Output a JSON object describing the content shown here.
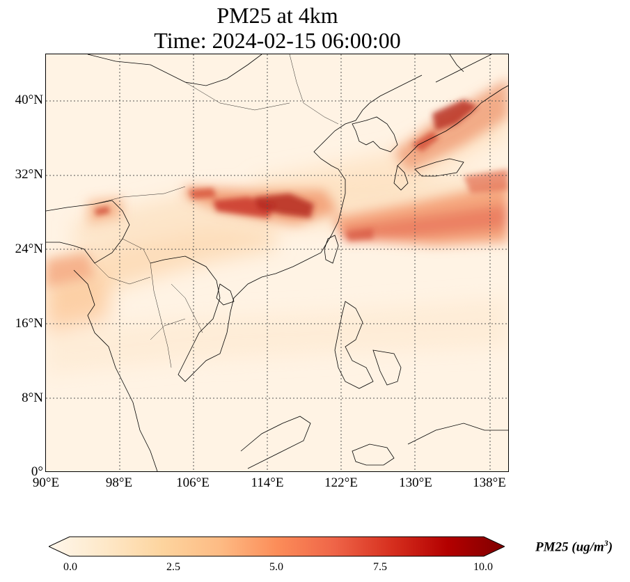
{
  "title": {
    "line1": "PM25 at 4km",
    "line2": "Time: 2024-02-15 06:00:00"
  },
  "map": {
    "projection": "PlateCarree",
    "lon_range": [
      90,
      139
    ],
    "lat_range": [
      0,
      45
    ],
    "coastlines": true,
    "borders": true,
    "gridlines": "dotted",
    "lat_ticks": [
      "40°N",
      "32°N",
      "24°N",
      "16°N",
      "8°N",
      "0°"
    ],
    "lon_ticks": [
      "90°E",
      "98°E",
      "106°E",
      "114°E",
      "122°E",
      "130°E",
      "138°E"
    ],
    "colormap": "OrRd",
    "background_color": "#fff3e4"
  },
  "colorbar": {
    "ticks": [
      "0.0",
      "2.5",
      "5.0",
      "7.5",
      "10.0"
    ],
    "label_main": "PM25 (ug/m",
    "label_sup": "3",
    "label_end": ")",
    "extend": "both",
    "colors": [
      "#fff7ec",
      "#fee8c8",
      "#fdd49e",
      "#fdbb84",
      "#fc8d59",
      "#ef6548",
      "#d7301f",
      "#b30000",
      "#7f0000"
    ]
  },
  "chart_data": {
    "type": "heatmap",
    "title": "PM25 at 4km\nTime: 2024-02-15 06:00:00",
    "xlabel": "",
    "ylabel": "",
    "variable": "PM25",
    "units": "ug/m3",
    "color_range": [
      0,
      10
    ],
    "features": [
      {
        "name": "band-south-china",
        "lon": [
          107,
          120
        ],
        "lat": [
          26,
          31
        ],
        "level": 8
      },
      {
        "name": "band-east-china-sea",
        "lon": [
          119,
          139
        ],
        "lat": [
          23,
          31
        ],
        "level": 5
      },
      {
        "name": "band-japan",
        "lon": [
          128,
          139
        ],
        "lat": [
          34,
          42
        ],
        "level": 7
      },
      {
        "name": "plume-myanmar-border",
        "lon": [
          96,
          99
        ],
        "lat": [
          28,
          29.5
        ],
        "level": 6
      },
      {
        "name": "band-bay-of-bengal",
        "lon": [
          90,
          100
        ],
        "lat": [
          18,
          24
        ],
        "level": 3
      }
    ]
  }
}
